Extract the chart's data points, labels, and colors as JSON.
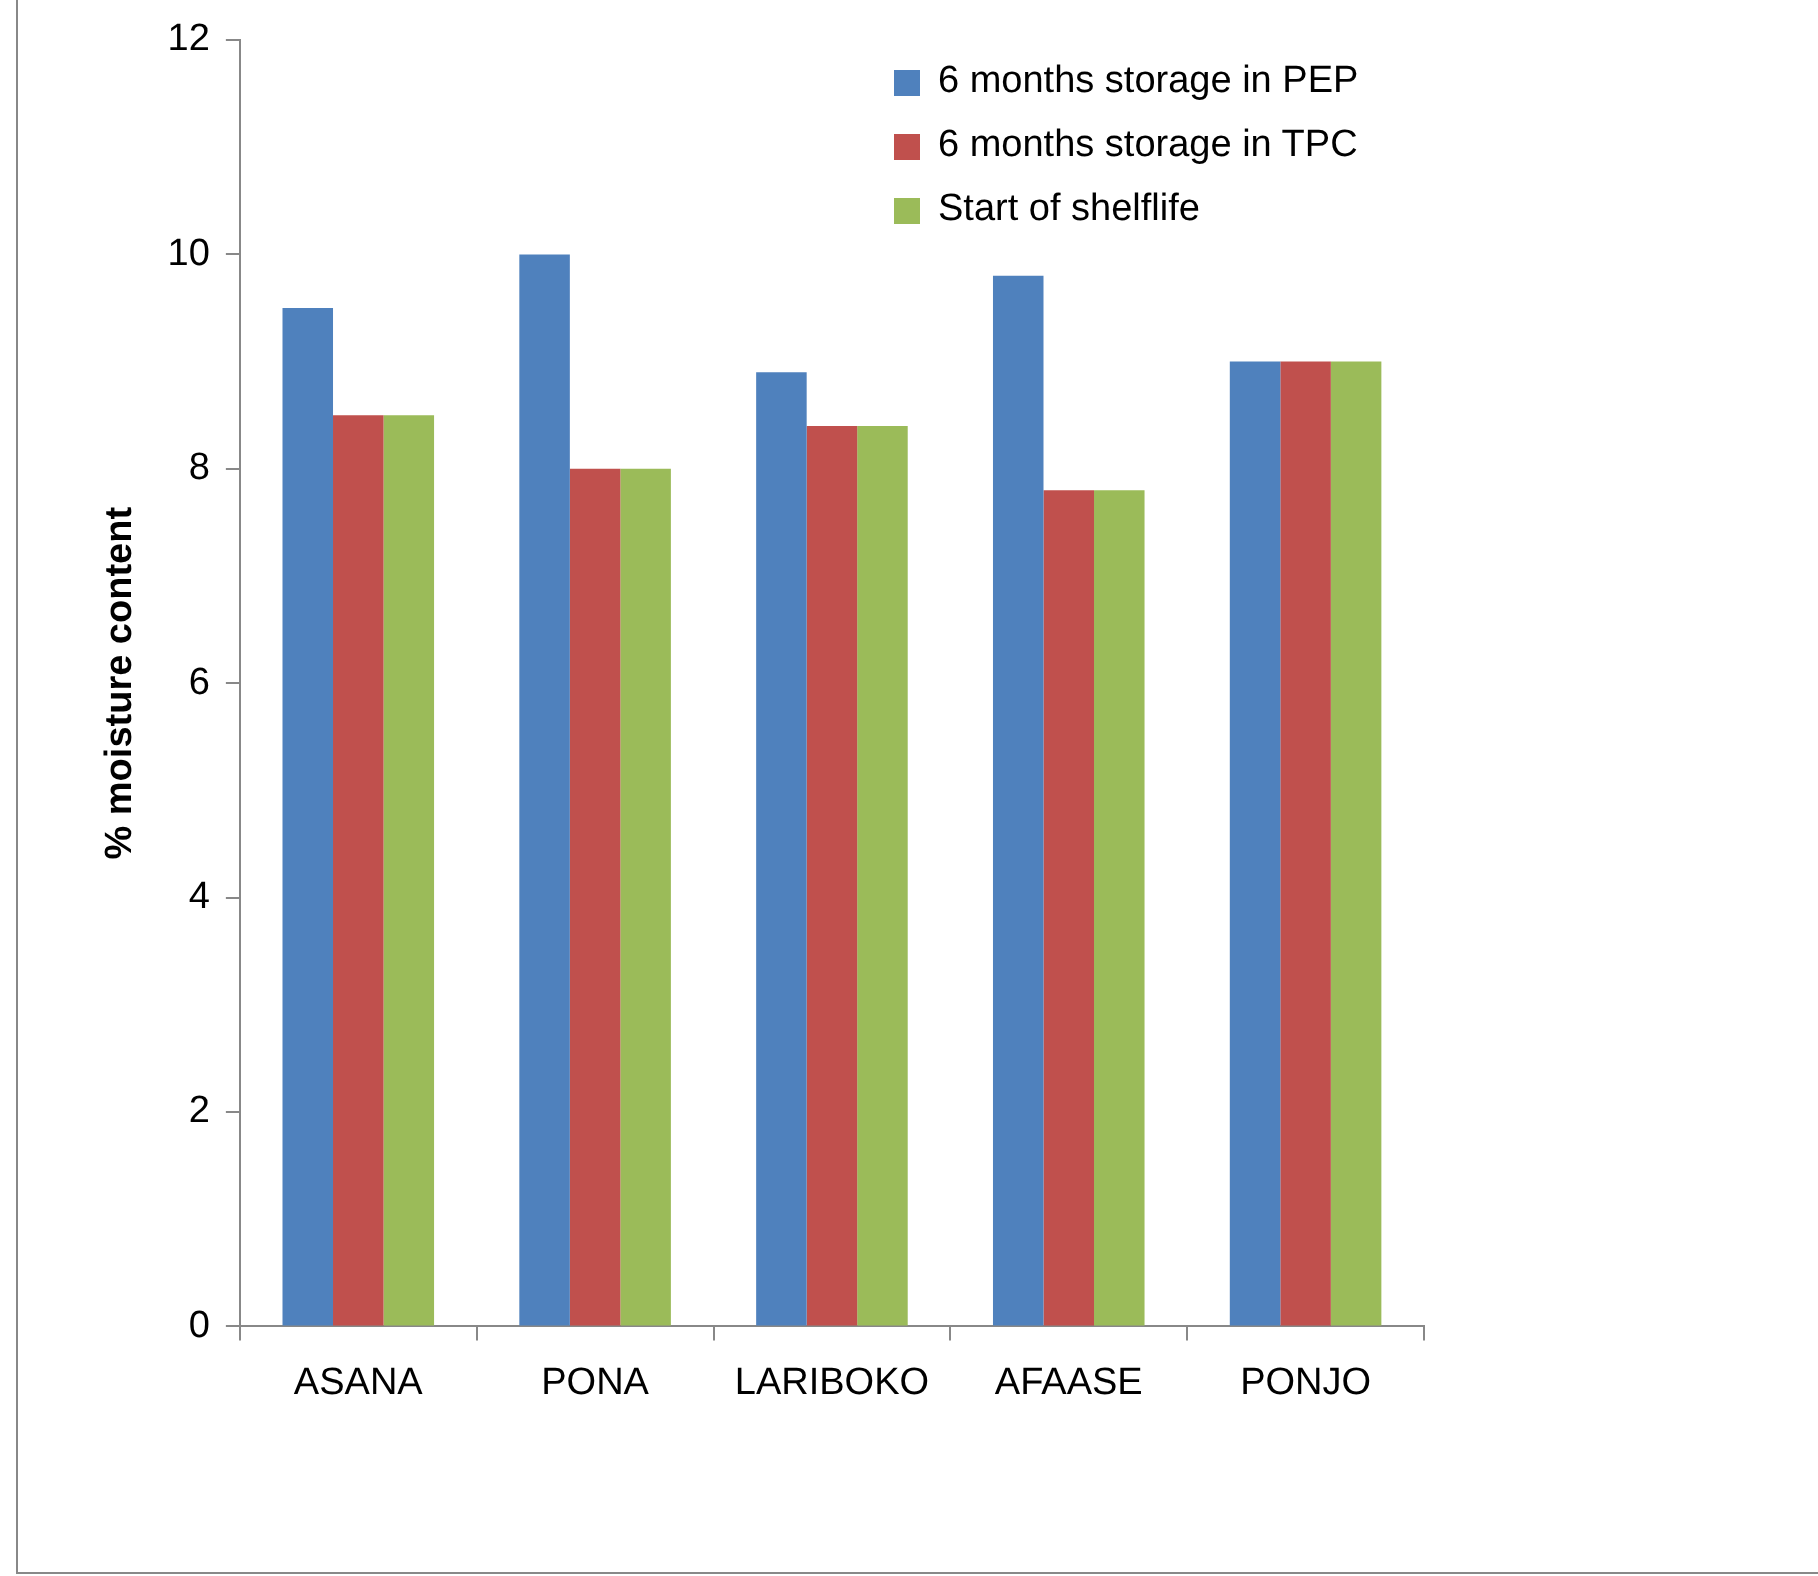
{
  "chart_data": {
    "type": "bar",
    "ylabel": "% moisture content",
    "categories": [
      "ASANA",
      "PONA",
      "LARIBOKO",
      "AFAASE",
      "PONJO"
    ],
    "series": [
      {
        "name": "6 months storage in PEP",
        "color": "#4f81bd",
        "values": [
          9.5,
          10.0,
          8.9,
          9.8,
          9.0
        ]
      },
      {
        "name": "6 months storage in TPC",
        "color": "#c0504d",
        "values": [
          8.5,
          8.0,
          8.4,
          7.8,
          9.0
        ]
      },
      {
        "name": "Start of shelflife",
        "color": "#9bbb59",
        "values": [
          8.5,
          8.0,
          8.4,
          7.8,
          9.0
        ]
      }
    ],
    "ylim": [
      0,
      12
    ],
    "yticks": [
      0,
      2,
      4,
      6,
      8,
      10,
      12
    ],
    "grid": false,
    "legend": "top right"
  }
}
